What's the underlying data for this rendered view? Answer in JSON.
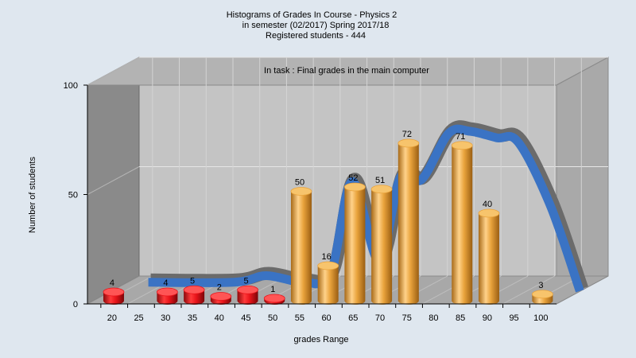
{
  "chart_data": {
    "type": "bar",
    "title_lines": [
      "Histograms of Grades  In Course - Physics 2",
      "in semester  (02/2017) Spring 2017/18",
      "Registered students - 444"
    ],
    "subtitle": "In task : Final grades in the main computer",
    "xlabel": "grades Range",
    "ylabel": "Number of students",
    "ylim": [
      0,
      100
    ],
    "yticks": [
      0,
      50,
      100
    ],
    "xticks": [
      20,
      25,
      30,
      35,
      40,
      45,
      50,
      55,
      60,
      65,
      70,
      75,
      80,
      85,
      90,
      95,
      100
    ],
    "x_range": [
      17.5,
      105
    ],
    "bars": [
      {
        "x": 21.5,
        "value": 4,
        "label": "4",
        "color": "#e8141a"
      },
      {
        "x": 31.5,
        "value": 4,
        "label": "4",
        "color": "#e8141a"
      },
      {
        "x": 36.5,
        "value": 5,
        "label": "5",
        "color": "#e8141a"
      },
      {
        "x": 41.5,
        "value": 2,
        "label": "2",
        "color": "#e8141a"
      },
      {
        "x": 46.5,
        "value": 5,
        "label": "5",
        "color": "#e8141a"
      },
      {
        "x": 51.5,
        "value": 1,
        "label": "1",
        "color": "#e8141a"
      },
      {
        "x": 56.5,
        "value": 50,
        "label": "50",
        "color": "#e9a33c"
      },
      {
        "x": 61.5,
        "value": 16,
        "label": "16",
        "color": "#e9a33c"
      },
      {
        "x": 66.5,
        "value": 52,
        "label": "52",
        "color": "#e9a33c"
      },
      {
        "x": 71.5,
        "value": 51,
        "label": "51",
        "color": "#e9a33c"
      },
      {
        "x": 76.5,
        "value": 72,
        "label": "72",
        "color": "#e9a33c"
      },
      {
        "x": 86.5,
        "value": 71,
        "label": "71",
        "color": "#e9a33c"
      },
      {
        "x": 91.5,
        "value": 40,
        "label": "40",
        "color": "#e9a33c"
      },
      {
        "x": 101.5,
        "value": 3,
        "label": "3",
        "color": "#e9a33c"
      }
    ],
    "trend_curve": {
      "points": [
        [
          24,
          4
        ],
        [
          40,
          4
        ],
        [
          46,
          7
        ],
        [
          53,
          4
        ],
        [
          58,
          8
        ],
        [
          62,
          50
        ],
        [
          67,
          14
        ],
        [
          71,
          52
        ],
        [
          75,
          51
        ],
        [
          80,
          72
        ],
        [
          84,
          73
        ],
        [
          89,
          70
        ],
        [
          93,
          68
        ],
        [
          99,
          39
        ],
        [
          104.5,
          0
        ]
      ],
      "front_color": "#3a73c4",
      "back_color": "#6b6b6b"
    },
    "grid": true,
    "legend": "none"
  },
  "colors": {
    "background": "#dfe7ef",
    "plot_back": "#c4c4c4",
    "left_wall": "#8a8a8a",
    "floor": "#a8a8a8"
  }
}
